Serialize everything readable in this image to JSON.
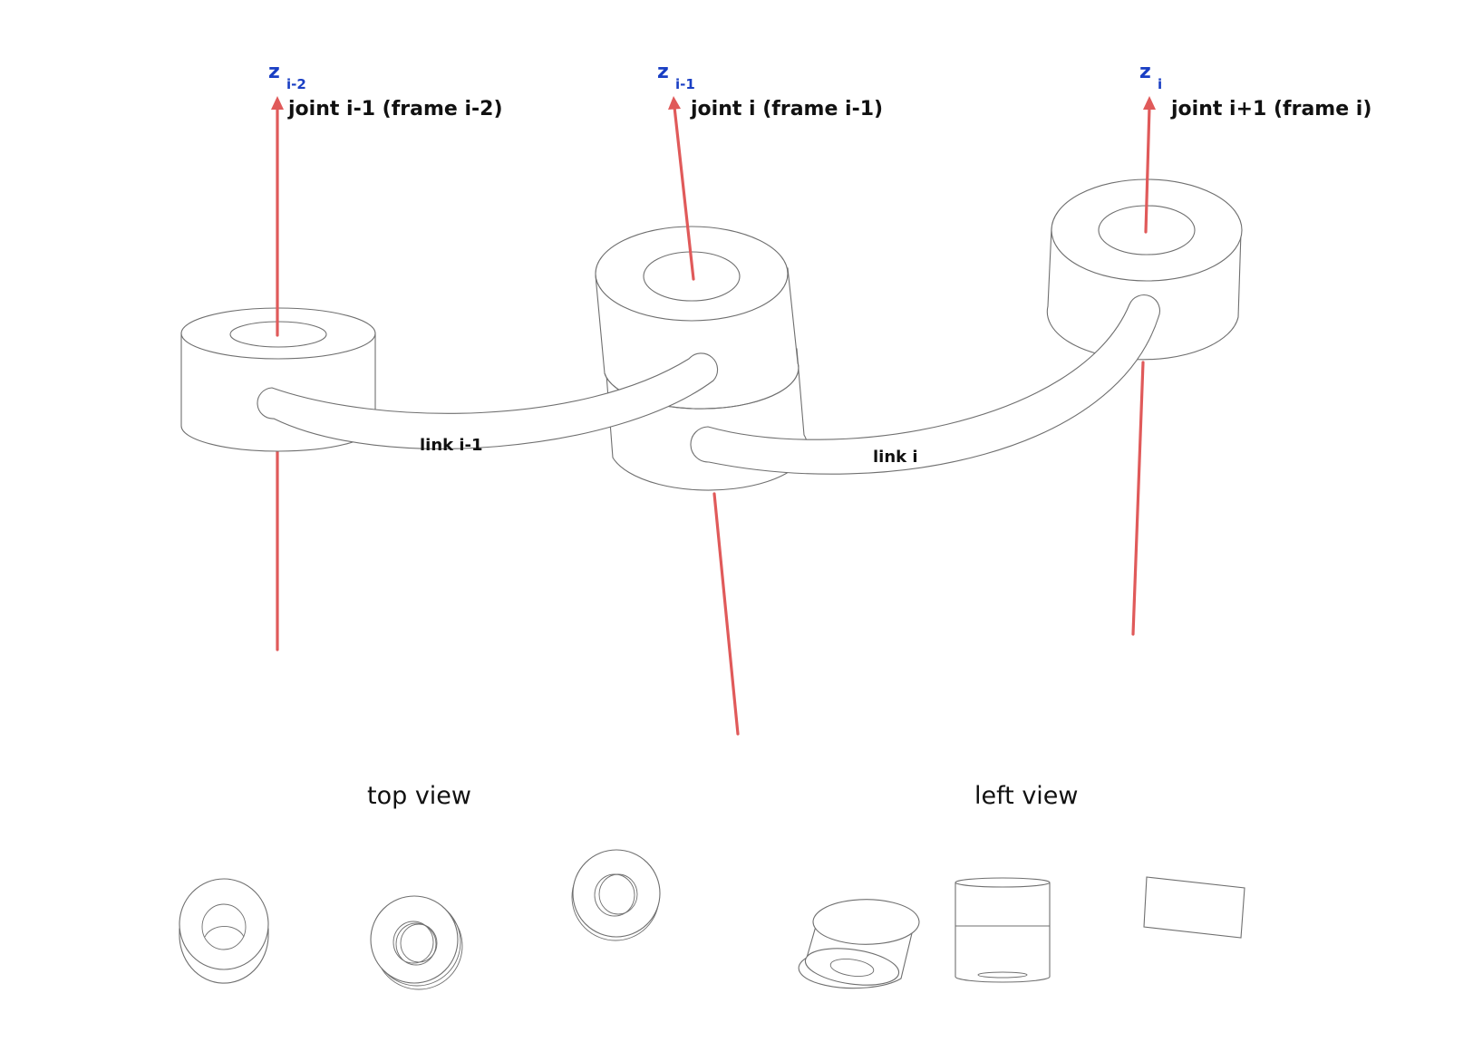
{
  "axes": [
    {
      "z": "z",
      "subscript": "i-2",
      "joint_label": "joint i-1 (frame i-2)"
    },
    {
      "z": "z",
      "subscript": "i-1",
      "joint_label": "joint i (frame i-1)"
    },
    {
      "z": "z",
      "subscript": "i",
      "joint_label": "joint i+1 (frame i)"
    }
  ],
  "links": [
    {
      "label": "link i-1"
    },
    {
      "label": "link i"
    }
  ],
  "views": {
    "top": "top view",
    "left": "left view"
  },
  "colors": {
    "axis": "#e05a5a",
    "axis_label": "#1a3fc4",
    "outline": "#6f6f6f",
    "text": "#111111"
  }
}
